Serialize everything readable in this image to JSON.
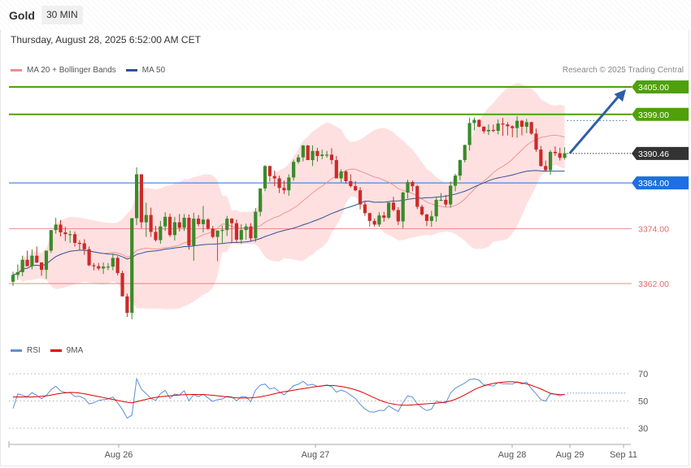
{
  "header": {
    "symbol": "Gold",
    "timeframe": "30 MIN",
    "datetime": "Thursday, August 28, 2025 6:52:00 AM CET"
  },
  "legend": {
    "ma20_label": "MA 20 + Bollinger Bands",
    "ma20_color": "#f08c8c",
    "ma50_label": "MA 50",
    "ma50_color": "#2f5496"
  },
  "credit": "Research © 2025 Trading Central",
  "rsi_legend": {
    "rsi_label": "RSI",
    "rsi_color": "#5b8fd6",
    "ma_label": "9MA",
    "ma_color": "#e00000"
  },
  "colors": {
    "up_candle": "#3a8a2a",
    "down_candle": "#cc2a2a",
    "band_fill": "#ffd6d6",
    "resistance": "#4fa00a",
    "pivot": "#1e6fe0",
    "support": "#e46a6a",
    "current_price": "#333333",
    "arrow": "#2e5ea8"
  },
  "chart_data": {
    "type": "candlestick",
    "timeframe": "30 MIN",
    "price_range": [
      3355,
      3407
    ],
    "levels": [
      {
        "label": "3405.00",
        "value": 3405.0,
        "kind": "resistance"
      },
      {
        "label": "3399.00",
        "value": 3399.0,
        "kind": "resistance"
      },
      {
        "label": "3390.46",
        "value": 3390.46,
        "kind": "current"
      },
      {
        "label": "3384.00",
        "value": 3384.0,
        "kind": "pivot"
      },
      {
        "label": "3374.00",
        "value": 3374.0,
        "kind": "support"
      },
      {
        "label": "3362.00",
        "value": 3362.0,
        "kind": "support"
      }
    ],
    "x_ticks": [
      "Aug 26",
      "Aug 27",
      "Aug 28",
      "Aug 29",
      "Sep 11"
    ],
    "forecast": {
      "from": 3390.46,
      "to": 3405.0,
      "direction": "up"
    },
    "candles": [
      [
        3362.4,
        3364.6,
        3361.5,
        3363.9
      ],
      [
        3363.9,
        3366.2,
        3362.8,
        3364.5
      ],
      [
        3364.5,
        3368.1,
        3363.6,
        3367.2
      ],
      [
        3367.2,
        3369.2,
        3365.8,
        3365.8
      ],
      [
        3365.8,
        3369.5,
        3365.1,
        3368.1
      ],
      [
        3368.1,
        3370.1,
        3366.5,
        3366.6
      ],
      [
        3366.6,
        3366.7,
        3363.7,
        3365.0
      ],
      [
        3365.0,
        3369.2,
        3363.0,
        3369.2
      ],
      [
        3369.2,
        3373.7,
        3368.7,
        3373.7
      ],
      [
        3373.7,
        3376.4,
        3372.9,
        3374.9
      ],
      [
        3374.9,
        3375.9,
        3372.3,
        3373.2
      ],
      [
        3373.2,
        3374.4,
        3371.3,
        3372.8
      ],
      [
        3372.8,
        3373.6,
        3370.9,
        3372.8
      ],
      [
        3372.8,
        3373.4,
        3370.1,
        3370.9
      ],
      [
        3370.9,
        3371.5,
        3369.2,
        3370.8
      ],
      [
        3370.8,
        3371.7,
        3368.3,
        3369.5
      ],
      [
        3369.5,
        3370.1,
        3365.8,
        3366.0
      ],
      [
        3366.0,
        3366.5,
        3364.9,
        3365.8
      ],
      [
        3365.8,
        3366.5,
        3364.9,
        3365.3
      ],
      [
        3365.3,
        3366.6,
        3364.1,
        3365.7
      ],
      [
        3365.7,
        3366.5,
        3364.9,
        3365.7
      ],
      [
        3365.7,
        3368.6,
        3364.9,
        3367.6
      ],
      [
        3367.6,
        3368.0,
        3363.8,
        3364.3
      ],
      [
        3364.3,
        3364.8,
        3359.2,
        3359.2
      ],
      [
        3359.2,
        3359.8,
        3354.7,
        3355.6
      ],
      [
        3355.6,
        3376.3,
        3354.2,
        3376.3
      ],
      [
        3376.3,
        3387.4,
        3374.8,
        3385.9
      ],
      [
        3385.9,
        3385.8,
        3374.1,
        3375.4
      ],
      [
        3375.4,
        3379.7,
        3372.2,
        3377.0
      ],
      [
        3377.0,
        3378.6,
        3372.2,
        3373.3
      ],
      [
        3373.3,
        3374.6,
        3371.2,
        3371.5
      ],
      [
        3371.5,
        3375.7,
        3370.7,
        3374.5
      ],
      [
        3374.5,
        3377.6,
        3373.5,
        3376.6
      ],
      [
        3376.6,
        3377.3,
        3372.2,
        3372.6
      ],
      [
        3372.6,
        3376.6,
        3371.4,
        3375.4
      ],
      [
        3375.4,
        3377.2,
        3373.4,
        3374.2
      ],
      [
        3374.2,
        3377.2,
        3373.5,
        3376.4
      ],
      [
        3376.4,
        3377.1,
        3369.4,
        3370.3
      ],
      [
        3370.3,
        3377.5,
        3367.0,
        3376.2
      ],
      [
        3376.2,
        3377.0,
        3374.5,
        3375.0
      ],
      [
        3375.0,
        3379.0,
        3373.2,
        3376.0
      ],
      [
        3376.0,
        3376.3,
        3373.7,
        3374.0
      ],
      [
        3374.0,
        3374.6,
        3371.9,
        3372.2
      ],
      [
        3372.2,
        3373.6,
        3366.9,
        3373.6
      ],
      [
        3373.6,
        3374.7,
        3370.7,
        3373.7
      ],
      [
        3373.7,
        3376.8,
        3372.4,
        3376.2
      ],
      [
        3376.2,
        3376.3,
        3370.8,
        3375.2
      ],
      [
        3375.2,
        3376.0,
        3370.9,
        3371.6
      ],
      [
        3371.6,
        3375.0,
        3370.7,
        3373.7
      ],
      [
        3373.7,
        3375.1,
        3371.6,
        3374.5
      ],
      [
        3374.5,
        3375.2,
        3371.3,
        3371.9
      ],
      [
        3371.9,
        3378.5,
        3371.1,
        3377.7
      ],
      [
        3377.7,
        3382.8,
        3376.7,
        3382.8
      ],
      [
        3382.8,
        3387.9,
        3382.2,
        3387.7
      ],
      [
        3387.7,
        3387.8,
        3384.3,
        3385.5
      ],
      [
        3385.5,
        3386.7,
        3383.3,
        3385.0
      ],
      [
        3385.0,
        3385.6,
        3381.8,
        3382.9
      ],
      [
        3382.9,
        3384.5,
        3381.6,
        3382.4
      ],
      [
        3382.4,
        3385.9,
        3381.2,
        3385.2
      ],
      [
        3385.2,
        3389.1,
        3384.5,
        3388.6
      ],
      [
        3388.6,
        3390.2,
        3388.2,
        3389.6
      ],
      [
        3389.6,
        3392.3,
        3388.7,
        3392.2
      ],
      [
        3392.2,
        3392.3,
        3389.0,
        3389.0
      ],
      [
        3389.0,
        3392.2,
        3387.7,
        3391.0
      ],
      [
        3391.0,
        3391.7,
        3388.7,
        3389.9
      ],
      [
        3389.9,
        3391.3,
        3389.2,
        3390.2
      ],
      [
        3390.2,
        3391.0,
        3389.5,
        3390.2
      ],
      [
        3390.2,
        3391.6,
        3388.1,
        3389.0
      ],
      [
        3389.0,
        3389.9,
        3385.0,
        3385.0
      ],
      [
        3385.0,
        3387.0,
        3384.1,
        3386.5
      ],
      [
        3386.5,
        3386.8,
        3383.8,
        3384.4
      ],
      [
        3384.4,
        3385.9,
        3383.0,
        3383.3
      ],
      [
        3383.3,
        3384.4,
        3382.2,
        3382.4
      ],
      [
        3382.4,
        3383.1,
        3378.2,
        3379.3
      ],
      [
        3379.3,
        3380.0,
        3376.8,
        3377.4
      ],
      [
        3377.4,
        3377.5,
        3374.5,
        3375.7
      ],
      [
        3375.7,
        3376.2,
        3374.5,
        3374.9
      ],
      [
        3374.9,
        3377.6,
        3374.4,
        3376.9
      ],
      [
        3376.9,
        3377.7,
        3375.5,
        3376.4
      ],
      [
        3376.4,
        3379.8,
        3376.1,
        3379.7
      ],
      [
        3379.7,
        3381.0,
        3377.8,
        3378.1
      ],
      [
        3378.1,
        3378.7,
        3374.8,
        3375.6
      ],
      [
        3375.6,
        3382.1,
        3374.1,
        3381.9
      ],
      [
        3381.9,
        3384.7,
        3380.6,
        3384.2
      ],
      [
        3384.2,
        3384.5,
        3382.2,
        3383.3
      ],
      [
        3383.3,
        3383.6,
        3378.3,
        3378.8
      ],
      [
        3378.8,
        3379.2,
        3376.8,
        3377.1
      ],
      [
        3377.1,
        3377.3,
        3374.6,
        3375.7
      ],
      [
        3375.7,
        3377.9,
        3374.4,
        3376.7
      ],
      [
        3376.7,
        3381.0,
        3375.5,
        3380.3
      ],
      [
        3380.3,
        3381.8,
        3380.1,
        3380.3
      ],
      [
        3380.3,
        3381.4,
        3378.8,
        3379.3
      ],
      [
        3379.3,
        3384.3,
        3378.6,
        3383.4
      ],
      [
        3383.4,
        3386.0,
        3382.2,
        3385.6
      ],
      [
        3385.6,
        3389.1,
        3384.6,
        3389.0
      ],
      [
        3389.0,
        3392.4,
        3388.5,
        3392.3
      ],
      [
        3392.3,
        3398.3,
        3391.1,
        3397.1
      ],
      [
        3397.1,
        3398.3,
        3395.5,
        3397.8
      ],
      [
        3397.8,
        3397.9,
        3396.2,
        3396.3
      ],
      [
        3396.3,
        3396.4,
        3394.8,
        3395.3
      ],
      [
        3395.3,
        3396.8,
        3394.5,
        3395.6
      ],
      [
        3395.6,
        3396.8,
        3395.1,
        3395.4
      ],
      [
        3395.4,
        3397.9,
        3394.6,
        3397.0
      ],
      [
        3397.0,
        3398.2,
        3394.3,
        3396.8
      ],
      [
        3396.8,
        3397.3,
        3394.4,
        3396.4
      ],
      [
        3396.4,
        3396.6,
        3394.0,
        3396.0
      ],
      [
        3396.0,
        3398.6,
        3393.9,
        3397.6
      ],
      [
        3397.6,
        3397.8,
        3394.4,
        3396.3
      ],
      [
        3396.3,
        3398.0,
        3394.9,
        3397.3
      ],
      [
        3397.3,
        3397.4,
        3394.5,
        3394.8
      ],
      [
        3394.8,
        3395.9,
        3390.8,
        3391.3
      ],
      [
        3391.3,
        3392.1,
        3387.6,
        3387.7
      ],
      [
        3387.7,
        3388.9,
        3386.4,
        3386.8
      ],
      [
        3386.8,
        3391.2,
        3385.8,
        3390.8
      ],
      [
        3390.8,
        3392.0,
        3389.9,
        3390.5
      ],
      [
        3390.5,
        3391.7,
        3388.9,
        3389.5
      ],
      [
        3389.5,
        3391.8,
        3389.1,
        3390.5
      ]
    ],
    "rsi": {
      "range": [
        20,
        80
      ],
      "levels": [
        70,
        50,
        30
      ],
      "rsi_label": "RSI",
      "ma_label": "9MA",
      "rsi_values": [
        44.4,
        55.2,
        54.2,
        53.1,
        56.1,
        54.1,
        51.6,
        54.1,
        58.3,
        60.9,
        57.4,
        56.3,
        56.1,
        53.3,
        53.4,
        51.9,
        47.9,
        48.7,
        50.4,
        51.0,
        51.4,
        52.9,
        48.6,
        43.7,
        37.4,
        39.6,
        66.3,
        58.6,
        55.4,
        51.8,
        50.5,
        55.3,
        57.8,
        52.0,
        55.1,
        54.4,
        57.5,
        50.0,
        54.7,
        53.2,
        55.0,
        52.2,
        49.7,
        51.0,
        51.4,
        53.4,
        53.0,
        50.1,
        53.1,
        53.0,
        49.5,
        58.0,
        61.6,
        62.4,
        58.8,
        59.6,
        56.7,
        54.5,
        57.8,
        61.2,
        62.3,
        64.4,
        61.6,
        62.2,
        60.7,
        61.0,
        61.8,
        60.5,
        56.5,
        58.0,
        56.7,
        54.2,
        51.9,
        47.5,
        44.2,
        42.0,
        41.8,
        43.1,
        43.0,
        46.4,
        44.2,
        42.3,
        48.8,
        53.8,
        52.8,
        47.9,
        45.0,
        42.9,
        44.0,
        49.9,
        49.1,
        48.4,
        55.9,
        59.3,
        61.3,
        63.2,
        65.7,
        66.2,
        65.3,
        61.7,
        61.8,
        60.9,
        63.6,
        62.6,
        62.6,
        62.4,
        64.1,
        62.5,
        63.8,
        59.1,
        55.2,
        50.9,
        49.9,
        55.2,
        55.0,
        53.7,
        55.2
      ],
      "ma_values": [
        52.9,
        52.9,
        52.9,
        52.9,
        52.9,
        53.1,
        53.4,
        53.7,
        54.3,
        55.0,
        55.6,
        56.0,
        56.3,
        56.2,
        55.8,
        55.3,
        54.6,
        53.9,
        53.2,
        52.5,
        51.8,
        51.1,
        50.4,
        49.7,
        49.0,
        48.6,
        49.5,
        50.4,
        51.2,
        52.0,
        52.6,
        53.1,
        53.5,
        53.8,
        54.1,
        54.4,
        54.6,
        54.7,
        54.8,
        54.8,
        54.7,
        54.5,
        54.2,
        53.8,
        53.4,
        53.0,
        52.6,
        52.3,
        52.2,
        52.2,
        52.3,
        52.6,
        53.0,
        53.7,
        54.5,
        55.3,
        56.1,
        56.8,
        57.3,
        57.9,
        58.5,
        59.0,
        59.6,
        60.2,
        60.7,
        61.1,
        61.4,
        61.4,
        61.1,
        60.7,
        60.0,
        59.2,
        58.2,
        57.0,
        55.5,
        53.9,
        52.3,
        50.8,
        49.4,
        48.4,
        47.7,
        47.2,
        46.9,
        46.9,
        47.1,
        47.4,
        47.7,
        47.9,
        48.2,
        48.4,
        48.7,
        49.3,
        50.0,
        51.2,
        52.7,
        54.5,
        56.4,
        58.3,
        59.9,
        61.1,
        62.1,
        62.9,
        63.4,
        63.8,
        64.1,
        64.1,
        63.8,
        63.3,
        62.5,
        61.5,
        60.2,
        58.8,
        57.2,
        55.6,
        55.0,
        54.7,
        54.6
      ]
    }
  }
}
